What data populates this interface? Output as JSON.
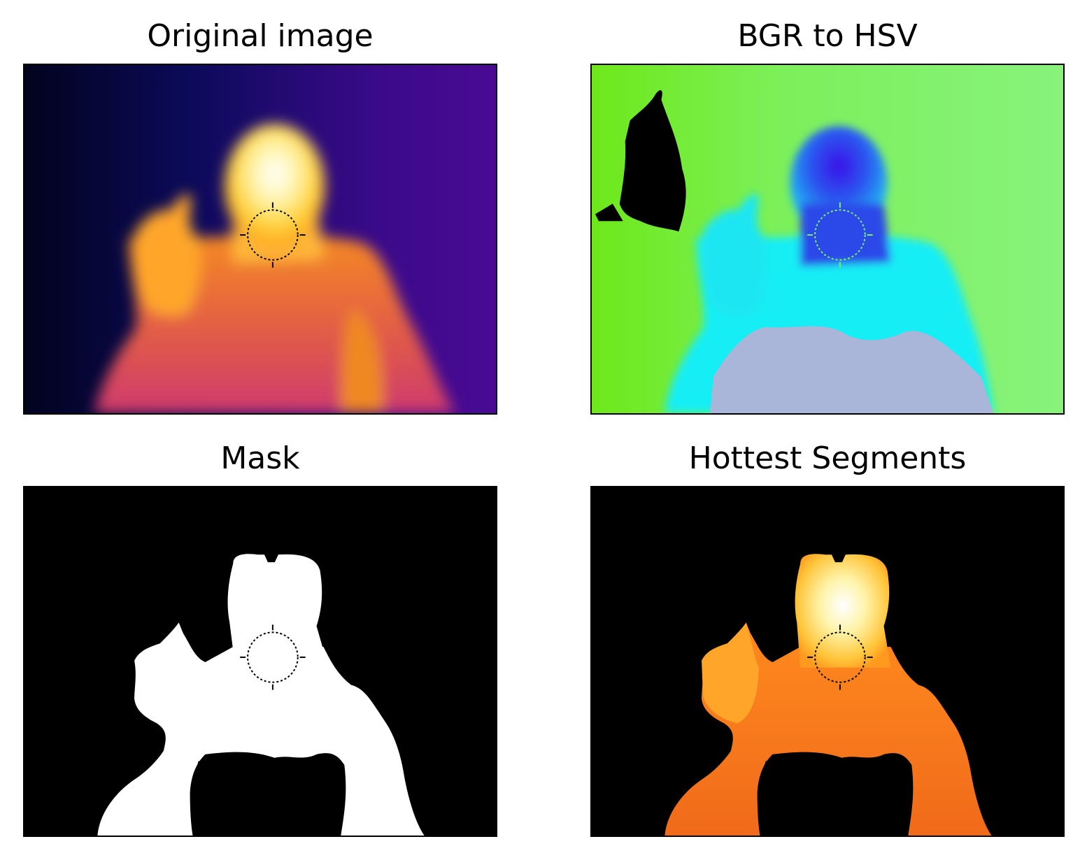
{
  "figure": {
    "panels": [
      {
        "title": "Original image"
      },
      {
        "title": "BGR to HSV"
      },
      {
        "title": "Mask"
      },
      {
        "title": "Hottest Segments"
      }
    ]
  },
  "colors": {
    "background_cold": "#05063a",
    "background_purple": "#4a0a8c",
    "body_orange": "#f07a1c",
    "body_magenta": "#d6346a",
    "face_hot": "#ffe97a",
    "hsv_green": "#7cf06a",
    "hsv_cyan": "#19f0f5",
    "hsv_blue": "#2a3ce6",
    "hsv_lavender": "#a9b4dd",
    "mask_white": "#ffffff",
    "mask_black": "#000000"
  }
}
